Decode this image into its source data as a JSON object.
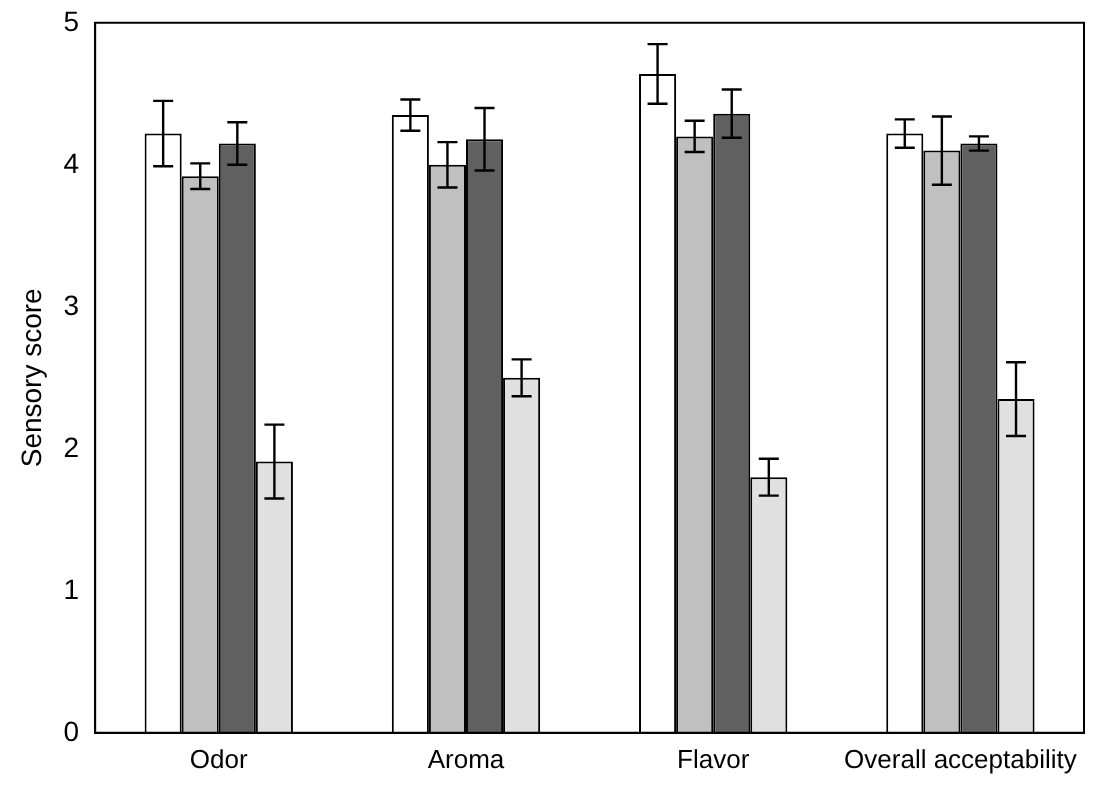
{
  "chart_data": {
    "type": "bar",
    "ylabel": "Sensory score",
    "categories": [
      "Odor",
      "Aroma",
      "Flavor",
      "Overall acceptability"
    ],
    "series": [
      {
        "color": "#ffffff",
        "values": [
          4.22,
          4.35,
          4.64,
          4.22
        ],
        "errors": [
          0.23,
          0.11,
          0.21,
          0.1
        ]
      },
      {
        "color": "#c0c0c0",
        "values": [
          3.92,
          4.0,
          4.2,
          4.1
        ],
        "errors": [
          0.09,
          0.16,
          0.11,
          0.24
        ]
      },
      {
        "color": "#606060",
        "values": [
          4.15,
          4.18,
          4.36,
          4.15
        ],
        "errors": [
          0.15,
          0.22,
          0.17,
          0.05
        ]
      },
      {
        "color": "#e0e0e0",
        "values": [
          1.91,
          2.5,
          1.8,
          2.35
        ],
        "errors": [
          0.26,
          0.13,
          0.13,
          0.26
        ]
      }
    ],
    "ylim": [
      0,
      5
    ],
    "yticks": [
      0,
      1,
      2,
      3,
      4,
      5
    ],
    "grid": false,
    "legend": false
  }
}
